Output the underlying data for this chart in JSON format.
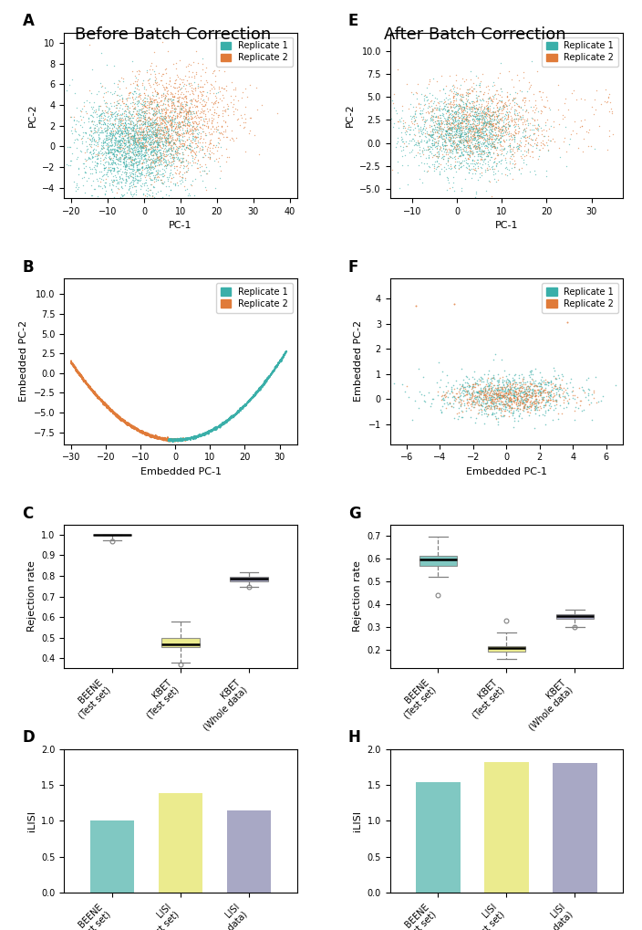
{
  "title_left": "Before Batch Correction",
  "title_right": "After Batch Correction",
  "color_rep1": "#3aafa9",
  "color_rep2": "#e07b39",
  "color_beene": "#6abfb8",
  "color_kbet": "#e8e87a",
  "color_lisi_whole": "#9999bb",
  "scatter_A": {
    "xlabel": "PC-1",
    "ylabel": "PC-2",
    "xlim": [
      -22,
      42
    ],
    "ylim": [
      -5,
      11
    ],
    "yticks": [
      -4,
      -2,
      0,
      2,
      4,
      6,
      8,
      10
    ],
    "xticks": [
      -20,
      -10,
      0,
      10,
      20,
      30,
      40
    ]
  },
  "scatter_E": {
    "xlabel": "PC-1",
    "ylabel": "PC-2",
    "xlim": [
      -15,
      37
    ],
    "ylim": [
      -6,
      12
    ],
    "yticks": [
      -5.0,
      -2.5,
      0.0,
      2.5,
      5.0,
      7.5,
      10.0
    ],
    "xticks": [
      -10,
      0,
      10,
      20,
      30
    ]
  },
  "scatter_B": {
    "xlabel": "Embedded PC-1",
    "ylabel": "Embedded PC-2",
    "xlim": [
      -32,
      35
    ],
    "ylim": [
      -9,
      12
    ],
    "yticks": [
      -7.5,
      -5.0,
      -2.5,
      0.0,
      2.5,
      5.0,
      7.5,
      10.0
    ],
    "xticks": [
      -30,
      -20,
      -10,
      0,
      10,
      20,
      30
    ]
  },
  "scatter_F": {
    "xlabel": "Embedded PC-1",
    "ylabel": "Embedded PC-2",
    "xlim": [
      -7,
      7
    ],
    "ylim": [
      -1.8,
      4.8
    ],
    "yticks": [
      -1,
      0,
      1,
      2,
      3,
      4
    ],
    "xticks": [
      -6,
      -4,
      -2,
      0,
      2,
      4,
      6
    ]
  },
  "boxplot_C": {
    "ylabel": "Rejection rate",
    "ylim": [
      0.35,
      1.05
    ],
    "yticks": [
      0.4,
      0.5,
      0.6,
      0.7,
      0.8,
      0.9,
      1.0
    ],
    "categories": [
      "BEENE\n(Test set)",
      "KBET\n(Test set)",
      "KBET\n(Whole data)"
    ],
    "box1": {
      "median": 0.999,
      "q1": 0.998,
      "q3": 1.0,
      "whislo": 0.975,
      "whishi": 1.0,
      "fliers": [
        0.97
      ]
    },
    "box2": {
      "median": 0.468,
      "q1": 0.452,
      "q3": 0.498,
      "whislo": 0.378,
      "whishi": 0.578,
      "fliers": [
        0.37
      ]
    },
    "box3": {
      "median": 0.785,
      "q1": 0.775,
      "q3": 0.795,
      "whislo": 0.748,
      "whishi": 0.82,
      "fliers": [
        0.745
      ]
    }
  },
  "boxplot_G": {
    "ylabel": "Rejection rate",
    "ylim": [
      0.12,
      0.75
    ],
    "yticks": [
      0.2,
      0.3,
      0.4,
      0.5,
      0.6,
      0.7
    ],
    "categories": [
      "BEENE\n(Test set)",
      "KBET\n(Test set)",
      "KBET\n(Whole data)"
    ],
    "box1": {
      "median": 0.598,
      "q1": 0.568,
      "q3": 0.612,
      "whislo": 0.52,
      "whishi": 0.695,
      "fliers": [
        0.44
      ]
    },
    "box2": {
      "median": 0.208,
      "q1": 0.195,
      "q3": 0.218,
      "whislo": 0.16,
      "whishi": 0.278,
      "fliers": [
        0.33
      ]
    },
    "box3": {
      "median": 0.348,
      "q1": 0.338,
      "q3": 0.358,
      "whislo": 0.302,
      "whishi": 0.378,
      "fliers": [
        0.3
      ]
    }
  },
  "bar_D": {
    "ylabel": "iLISI",
    "ylim": [
      0,
      2.0
    ],
    "yticks": [
      0.0,
      0.5,
      1.0,
      1.5,
      2.0
    ],
    "categories": [
      "BEENE\n(Test set)",
      "LISI\n(Test set)",
      "LISI\n(Whole data)"
    ],
    "values": [
      1.0,
      1.38,
      1.14
    ]
  },
  "bar_H": {
    "ylabel": "iLISI",
    "ylim": [
      0,
      2.0
    ],
    "yticks": [
      0.0,
      0.5,
      1.0,
      1.5,
      2.0
    ],
    "categories": [
      "BEENE\n(Test set)",
      "LISI\n(Test set)",
      "LISI\n(Whole data)"
    ],
    "values": [
      1.54,
      1.82,
      1.8
    ]
  }
}
